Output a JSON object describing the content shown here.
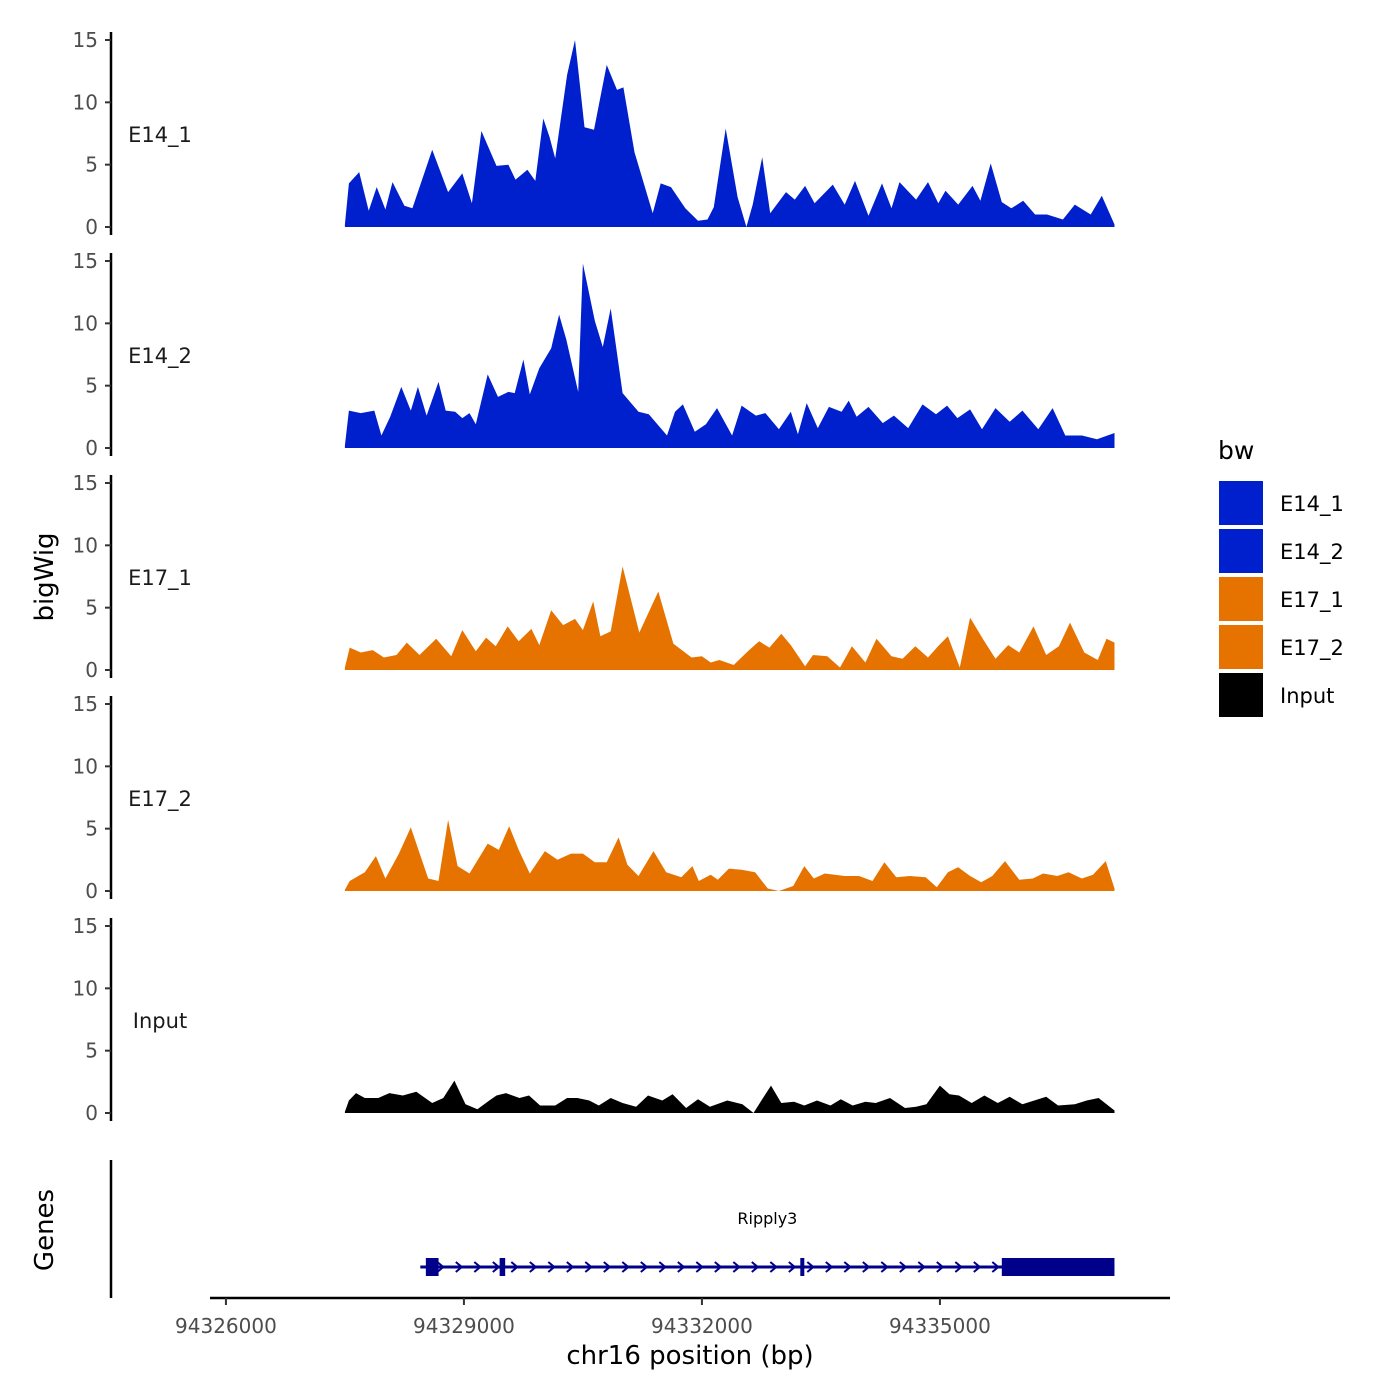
{
  "chart_data": {
    "type": "area",
    "ylabel": "bigWig",
    "xlabel": "chr16 position (bp)",
    "ylim": [
      0,
      15
    ],
    "yticks": [
      0,
      5,
      10,
      15
    ],
    "xlim": [
      94325900,
      94337900
    ],
    "xticks": [
      94326000,
      94329000,
      94332000,
      94335000
    ],
    "xtick_labels": [
      "94326000",
      "94329000",
      "94332000",
      "94335000"
    ],
    "legend": {
      "title": "bw",
      "position": "right",
      "entries": [
        {
          "label": "E14_1",
          "color": "#0020CD"
        },
        {
          "label": "E14_2",
          "color": "#0020CD"
        },
        {
          "label": "E17_1",
          "color": "#E67300"
        },
        {
          "label": "E17_2",
          "color": "#E67300"
        },
        {
          "label": "Input",
          "color": "#000000"
        }
      ]
    },
    "track_x_start": 94327500,
    "track_x_end": 94337200,
    "series": [
      {
        "name": "E14_1",
        "color": "#0020CD",
        "x": [
          94327500,
          94327550,
          94327680,
          94327800,
          94327900,
          94328010,
          94328100,
          94328250,
          94328350,
          94328600,
          94328800,
          94328980,
          94329100,
          94329220,
          94329410,
          94329560,
          94329650,
          94329800,
          94329900,
          94330000,
          94330080,
          94330150,
          94330300,
          94330400,
          94330520,
          94330640,
          94330800,
          94330930,
          94331010,
          94331150,
          94331380,
          94331480,
          94331610,
          94331790,
          94331950,
          94332070,
          94332150,
          94332300,
          94332450,
          94332560,
          94332640,
          94332760,
          94332860,
          94333060,
          94333170,
          94333300,
          94333420,
          94333650,
          94333800,
          94333930,
          94334100,
          94334270,
          94334390,
          94334490,
          94334700,
          94334850,
          94334980,
          94335070,
          94335230,
          94335410,
          94335510,
          94335640,
          94335780,
          94335900,
          94336050,
          94336200,
          94336350,
          94336550,
          94336700,
          94336900,
          94337040,
          94337200
        ],
        "y": [
          0.2,
          3.5,
          4.4,
          1.3,
          3.2,
          1.4,
          3.6,
          1.7,
          1.5,
          6.2,
          2.8,
          4.3,
          1.9,
          7.7,
          4.9,
          5.0,
          3.8,
          4.6,
          3.7,
          8.7,
          7.2,
          5.5,
          12.2,
          15.0,
          8.0,
          7.8,
          13.0,
          11.0,
          11.2,
          6.0,
          1.1,
          3.5,
          3.2,
          1.5,
          0.5,
          0.6,
          1.6,
          7.9,
          2.4,
          0.0,
          1.8,
          5.6,
          1.1,
          2.8,
          2.2,
          3.3,
          1.9,
          3.4,
          1.8,
          3.7,
          0.9,
          3.5,
          1.5,
          3.6,
          2.2,
          3.6,
          1.9,
          2.9,
          1.8,
          3.3,
          2.1,
          5.1,
          2.0,
          1.5,
          2.1,
          1.0,
          1.0,
          0.6,
          1.8,
          1.0,
          2.5,
          0.2
        ]
      },
      {
        "name": "E14_2",
        "color": "#0020CD",
        "x": [
          94327500,
          94327550,
          94327700,
          94327870,
          94327960,
          94328070,
          94328210,
          94328330,
          94328420,
          94328530,
          94328680,
          94328770,
          94328890,
          94328980,
          94329070,
          94329150,
          94329300,
          94329430,
          94329560,
          94329640,
          94329750,
          94329830,
          94329950,
          94330100,
          94330200,
          94330290,
          94330440,
          94330500,
          94330650,
          94330750,
          94330850,
          94331000,
          94331200,
          94331330,
          94331560,
          94331660,
          94331760,
          94331910,
          94332050,
          94332190,
          94332380,
          94332500,
          94332680,
          94332800,
          94332970,
          94333120,
          94333210,
          94333320,
          94333460,
          94333600,
          94333760,
          94333850,
          94333950,
          94334100,
          94334280,
          94334420,
          94334600,
          94334780,
          94334950,
          94335090,
          94335220,
          94335380,
          94335530,
          94335700,
          94335880,
          94336040,
          94336240,
          94336420,
          94336580,
          94336790,
          94336980,
          94337200
        ],
        "y": [
          0.2,
          3.0,
          2.8,
          3.0,
          1.0,
          2.5,
          4.9,
          3.0,
          4.9,
          2.6,
          5.3,
          3.0,
          2.9,
          2.4,
          2.8,
          1.9,
          5.9,
          4.1,
          4.5,
          4.4,
          7.1,
          4.3,
          6.4,
          8.0,
          10.7,
          8.7,
          4.5,
          14.8,
          10.2,
          8.1,
          11.2,
          4.4,
          2.9,
          2.7,
          1.0,
          2.9,
          3.5,
          1.3,
          1.9,
          3.2,
          1.0,
          3.4,
          2.6,
          2.8,
          1.5,
          2.9,
          1.1,
          3.6,
          1.6,
          3.3,
          2.9,
          3.8,
          2.5,
          3.3,
          2.0,
          2.6,
          1.6,
          3.5,
          2.7,
          3.4,
          2.4,
          3.1,
          1.5,
          3.2,
          2.1,
          3.0,
          1.5,
          3.2,
          1.0,
          1.0,
          0.7,
          1.2
        ]
      },
      {
        "name": "E17_1",
        "color": "#E67300",
        "x": [
          94327500,
          94327560,
          94327700,
          94327850,
          94327990,
          94328150,
          94328280,
          94328440,
          94328650,
          94328840,
          94328980,
          94329150,
          94329280,
          94329400,
          94329550,
          94329690,
          94329850,
          94329950,
          94330100,
          94330250,
          94330400,
          94330500,
          94330630,
          94330720,
          94330850,
          94331000,
          94331210,
          94331450,
          94331640,
          94331870,
          94332000,
          94332110,
          94332220,
          94332400,
          94332580,
          94332720,
          94332850,
          94333000,
          94333120,
          94333300,
          94333400,
          94333580,
          94333740,
          94333890,
          94334060,
          94334200,
          94334390,
          94334530,
          94334690,
          94334850,
          94334990,
          94335100,
          94335250,
          94335380,
          94335550,
          94335700,
          94335860,
          94336000,
          94336180,
          94336340,
          94336500,
          94336640,
          94336820,
          94336990,
          94337100,
          94337200
        ],
        "y": [
          0.2,
          1.8,
          1.4,
          1.6,
          1.0,
          1.2,
          2.2,
          1.2,
          2.5,
          1.1,
          3.2,
          1.5,
          2.6,
          1.9,
          3.5,
          2.3,
          3.3,
          2.0,
          4.8,
          3.6,
          4.1,
          3.2,
          5.5,
          2.7,
          3.1,
          8.3,
          3.0,
          6.3,
          2.1,
          1.0,
          1.1,
          0.6,
          0.8,
          0.4,
          1.5,
          2.3,
          1.8,
          2.9,
          2.0,
          0.3,
          1.2,
          1.1,
          0.2,
          1.9,
          0.6,
          2.5,
          1.1,
          0.9,
          1.9,
          1.0,
          2.0,
          2.7,
          0.2,
          4.2,
          2.4,
          0.9,
          2.0,
          1.4,
          3.5,
          1.2,
          1.9,
          3.8,
          1.4,
          0.8,
          2.5,
          2.2
        ]
      },
      {
        "name": "E17_2",
        "color": "#E67300",
        "x": [
          94327500,
          94327560,
          94327750,
          94327890,
          94328010,
          94328180,
          94328330,
          94328550,
          94328680,
          94328800,
          94328920,
          94329070,
          94329300,
          94329440,
          94329570,
          94329690,
          94329830,
          94330020,
          94330180,
          94330350,
          94330500,
          94330650,
          94330800,
          94330950,
          94331060,
          94331200,
          94331390,
          94331550,
          94331740,
          94331880,
          94331960,
          94332110,
          94332200,
          94332340,
          94332500,
          94332670,
          94332830,
          94332970,
          94333150,
          94333290,
          94333410,
          94333550,
          94333800,
          94333980,
          94334150,
          94334300,
          94334450,
          94334620,
          94334820,
          94334960,
          94335100,
          94335230,
          94335380,
          94335520,
          94335660,
          94335820,
          94336000,
          94336170,
          94336300,
          94336480,
          94336620,
          94336790,
          94336930,
          94337090,
          94337200
        ],
        "y": [
          0.1,
          0.8,
          1.5,
          2.8,
          1.0,
          3.0,
          5.1,
          1.0,
          0.8,
          5.7,
          2.0,
          1.4,
          3.8,
          3.3,
          5.2,
          3.3,
          1.4,
          3.2,
          2.5,
          3.0,
          3.0,
          2.3,
          2.3,
          4.3,
          2.1,
          1.2,
          3.2,
          1.5,
          1.1,
          2.0,
          0.8,
          1.3,
          0.9,
          1.8,
          1.7,
          1.5,
          0.2,
          0.0,
          0.4,
          2.0,
          1.0,
          1.4,
          1.2,
          1.2,
          0.8,
          2.3,
          1.1,
          1.2,
          1.1,
          0.3,
          1.5,
          1.9,
          1.2,
          0.7,
          1.2,
          2.4,
          0.9,
          1.0,
          1.4,
          1.2,
          1.5,
          1.0,
          1.3,
          2.4,
          0.2
        ]
      },
      {
        "name": "Input",
        "color": "#000000",
        "x": [
          94327500,
          94327550,
          94327640,
          94327750,
          94327920,
          94328060,
          94328230,
          94328400,
          94328600,
          94328740,
          94328880,
          94329020,
          94329170,
          94329320,
          94329410,
          94329530,
          94329700,
          94329820,
          94329960,
          94330150,
          94330300,
          94330430,
          94330580,
          94330700,
          94330850,
          94331000,
          94331170,
          94331320,
          94331500,
          94331630,
          94331800,
          94331950,
          94332100,
          94332320,
          94332510,
          94332650,
          94332760,
          94332870,
          94333000,
          94333160,
          94333290,
          94333450,
          94333620,
          94333750,
          94333900,
          94334060,
          94334190,
          94334370,
          94334560,
          94334700,
          94334830,
          94335000,
          94335120,
          94335240,
          94335400,
          94335560,
          94335730,
          94335880,
          94336040,
          94336190,
          94336340,
          94336490,
          94336700,
          94336850,
          94337000,
          94337200
        ],
        "y": [
          0.1,
          1.0,
          1.6,
          1.2,
          1.2,
          1.6,
          1.4,
          1.7,
          0.8,
          1.2,
          2.6,
          0.7,
          0.3,
          1.0,
          1.4,
          1.6,
          1.2,
          1.4,
          0.6,
          0.6,
          1.2,
          1.2,
          1.0,
          0.6,
          1.2,
          0.8,
          0.5,
          1.4,
          1.0,
          1.5,
          0.4,
          1.1,
          0.5,
          1.0,
          0.7,
          0.0,
          1.1,
          2.2,
          0.8,
          0.9,
          0.6,
          1.0,
          0.6,
          1.1,
          0.6,
          0.9,
          0.8,
          1.2,
          0.4,
          0.5,
          0.7,
          2.2,
          1.5,
          1.4,
          0.8,
          1.4,
          0.8,
          1.3,
          0.7,
          1.0,
          1.3,
          0.6,
          0.7,
          1.0,
          1.2,
          0.2
        ]
      }
    ],
    "genes": {
      "title": "Genes",
      "items": [
        {
          "name": "Ripply3",
          "color": "#00008B",
          "start": 94328450,
          "end": 94337200,
          "strand": "+",
          "exons": [
            [
              94328520,
              94328680
            ],
            [
              94329450,
              94329520
            ],
            [
              94333240,
              94333290
            ],
            [
              94335780,
              94337200
            ]
          ]
        }
      ]
    }
  }
}
